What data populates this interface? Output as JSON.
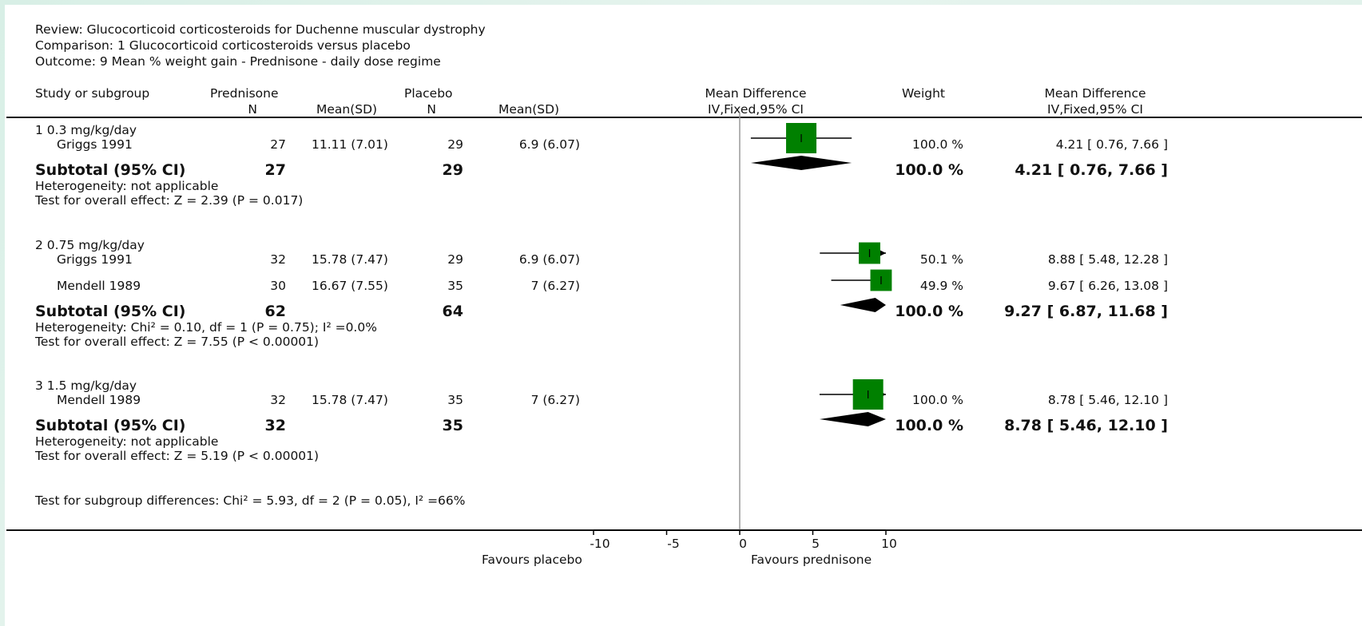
{
  "header": {
    "review": "Review:  Glucocorticoid corticosteroids for Duchenne muscular dystrophy",
    "comparison": "Comparison:  1 Glucocorticoid corticosteroids versus placebo",
    "outcome": "Outcome:  9 Mean % weight gain - Prednisone - daily dose regime"
  },
  "columns": {
    "study": "Study or subgroup",
    "group1": "Prednisone",
    "group2": "Placebo",
    "n": "N",
    "mean_sd": "Mean(SD)",
    "md_title": "Mean Difference",
    "md_method": "IV,Fixed,95% CI",
    "weight": "Weight",
    "md2_title": "Mean Difference",
    "md2_method": "IV,Fixed,95% CI"
  },
  "subgroups": [
    {
      "title": "1 0.3 mg/kg/day",
      "studies": [
        {
          "name": "Griggs 1991",
          "n1": "27",
          "ms1": "11.11 (7.01)",
          "n2": "29",
          "ms2": "6.9 (6.07)",
          "weight": "100.0 %",
          "ci": "4.21 [ 0.76, 7.66 ]"
        }
      ],
      "subtotal": {
        "label": "Subtotal (95% CI)",
        "n1": "27",
        "n2": "29",
        "weight": "100.0 %",
        "ci": "4.21 [ 0.76, 7.66 ]"
      },
      "heterogeneity": "Heterogeneity: not applicable",
      "overall": "Test for overall effect: Z = 2.39 (P = 0.017)"
    },
    {
      "title": "2 0.75 mg/kg/day",
      "studies": [
        {
          "name": "Griggs 1991",
          "n1": "32",
          "ms1": "15.78 (7.47)",
          "n2": "29",
          "ms2": "6.9 (6.07)",
          "weight": "50.1 %",
          "ci": "8.88 [ 5.48, 12.28 ]"
        },
        {
          "name": "Mendell 1989",
          "n1": "30",
          "ms1": "16.67 (7.55)",
          "n2": "35",
          "ms2": "7 (6.27)",
          "weight": "49.9 %",
          "ci": "9.67 [ 6.26, 13.08 ]"
        }
      ],
      "subtotal": {
        "label": "Subtotal (95% CI)",
        "n1": "62",
        "n2": "64",
        "weight": "100.0 %",
        "ci": "9.27 [ 6.87, 11.68 ]"
      },
      "heterogeneity": "Heterogeneity: Chi² = 0.10, df = 1 (P = 0.75); I² =0.0%",
      "overall": "Test for overall effect: Z = 7.55 (P < 0.00001)"
    },
    {
      "title": "3 1.5 mg/kg/day",
      "studies": [
        {
          "name": "Mendell 1989",
          "n1": "32",
          "ms1": "15.78 (7.47)",
          "n2": "35",
          "ms2": "7 (6.27)",
          "weight": "100.0 %",
          "ci": "8.78 [ 5.46, 12.10 ]"
        }
      ],
      "subtotal": {
        "label": "Subtotal (95% CI)",
        "n1": "32",
        "n2": "35",
        "weight": "100.0 %",
        "ci": "8.78 [ 5.46, 12.10 ]"
      },
      "heterogeneity": "Heterogeneity: not applicable",
      "overall": "Test for overall effect: Z = 5.19 (P < 0.00001)"
    }
  ],
  "subgroup_diff": "Test for subgroup differences: Chi² = 5.93, df = 2 (P = 0.05), I² =66%",
  "axis": {
    "ticks": [
      "-10",
      "-5",
      "0",
      "5",
      "10"
    ],
    "favours_left": "Favours placebo",
    "favours_right": "Favours prednisone"
  },
  "colors": {
    "box": "#008000",
    "diamond": "#000000",
    "line": "#000000",
    "zero_line": "#999999"
  },
  "chart_data": {
    "type": "forest",
    "xlim": [
      -10,
      10
    ],
    "xticks": [
      -10,
      -5,
      0,
      5,
      10
    ],
    "studies": [
      {
        "subgroup": "1 0.3 mg/kg/day",
        "name": "Griggs 1991",
        "md": 4.21,
        "lo": 0.76,
        "hi": 7.66,
        "weight": 100.0
      },
      {
        "subgroup": "2 0.75 mg/kg/day",
        "name": "Griggs 1991",
        "md": 8.88,
        "lo": 5.48,
        "hi": 12.28,
        "weight": 50.1
      },
      {
        "subgroup": "2 0.75 mg/kg/day",
        "name": "Mendell 1989",
        "md": 9.67,
        "lo": 6.26,
        "hi": 13.08,
        "weight": 49.9
      },
      {
        "subgroup": "3 1.5 mg/kg/day",
        "name": "Mendell 1989",
        "md": 8.78,
        "lo": 5.46,
        "hi": 12.1,
        "weight": 100.0
      }
    ],
    "subtotals": [
      {
        "subgroup": "1 0.3 mg/kg/day",
        "md": 4.21,
        "lo": 0.76,
        "hi": 7.66
      },
      {
        "subgroup": "2 0.75 mg/kg/day",
        "md": 9.27,
        "lo": 6.87,
        "hi": 11.68
      },
      {
        "subgroup": "3 1.5 mg/kg/day",
        "md": 8.78,
        "lo": 5.46,
        "hi": 12.1
      }
    ],
    "xlabel_left": "Favours placebo",
    "xlabel_right": "Favours prednisone"
  }
}
